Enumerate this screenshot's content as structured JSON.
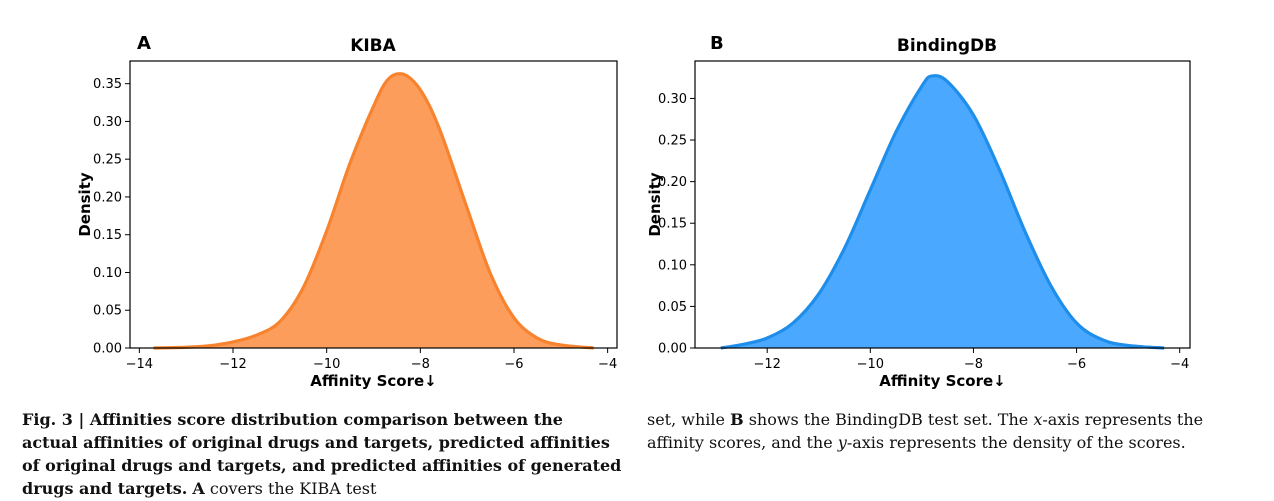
{
  "chart_data": [
    {
      "type": "area",
      "panel_label": "A",
      "title": "KIBA",
      "xlabel": "Affinity Score↓",
      "ylabel": "Density",
      "xlim": [
        -14.2,
        -3.8
      ],
      "ylim": [
        0,
        0.38
      ],
      "xticks": [
        -14,
        -12,
        -10,
        -8,
        -6,
        -4
      ],
      "xtick_labels": [
        "−14",
        "−12",
        "−10",
        "−8",
        "−6",
        "−4"
      ],
      "yticks": [
        0.0,
        0.05,
        0.1,
        0.15,
        0.2,
        0.25,
        0.3,
        0.35
      ],
      "ytick_labels": [
        "0.00",
        "0.05",
        "0.10",
        "0.15",
        "0.20",
        "0.25",
        "0.30",
        "0.35"
      ],
      "fill_color": "#fd9d5b",
      "line_color": "#f7832f",
      "grid": false,
      "series": [
        {
          "x": [
            -13.7,
            -13.0,
            -12.5,
            -12.0,
            -11.5,
            -11.0,
            -10.5,
            -10.0,
            -9.5,
            -9.0,
            -8.7,
            -8.4,
            -8.1,
            -7.8,
            -7.5,
            -7.0,
            -6.5,
            -6.0,
            -5.5,
            -5.0,
            -4.3
          ],
          "y": [
            0.0,
            0.001,
            0.003,
            0.008,
            0.017,
            0.035,
            0.08,
            0.155,
            0.245,
            0.32,
            0.355,
            0.363,
            0.35,
            0.32,
            0.275,
            0.185,
            0.098,
            0.04,
            0.013,
            0.004,
            0.0
          ]
        }
      ]
    },
    {
      "type": "area",
      "panel_label": "B",
      "title": "BindingDB",
      "xlabel": "Affinity Score↓",
      "ylabel": "Density",
      "xlim": [
        -13.4,
        -3.8
      ],
      "ylim": [
        0,
        0.345
      ],
      "xticks": [
        -12,
        -10,
        -8,
        -6,
        -4
      ],
      "xtick_labels": [
        "−12",
        "−10",
        "−8",
        "−6",
        "−4"
      ],
      "yticks": [
        0.0,
        0.05,
        0.1,
        0.15,
        0.2,
        0.25,
        0.3
      ],
      "ytick_labels": [
        "0.00",
        "0.05",
        "0.10",
        "0.15",
        "0.20",
        "0.25",
        "0.30"
      ],
      "fill_color": "#4aa8ff",
      "line_color": "#1f8eea",
      "grid": false,
      "series": [
        {
          "x": [
            -12.9,
            -12.5,
            -12.0,
            -11.5,
            -11.0,
            -10.5,
            -10.0,
            -9.5,
            -9.0,
            -8.8,
            -8.5,
            -8.0,
            -7.5,
            -7.0,
            -6.5,
            -6.0,
            -5.5,
            -5.0,
            -4.3
          ],
          "y": [
            0.0,
            0.004,
            0.012,
            0.03,
            0.065,
            0.12,
            0.19,
            0.26,
            0.315,
            0.327,
            0.32,
            0.28,
            0.215,
            0.14,
            0.075,
            0.03,
            0.01,
            0.003,
            0.0
          ]
        }
      ]
    }
  ],
  "caption": {
    "fig_label": "Fig. 3 | Affinities score distribution comparison between the actual affinities of original drugs and targets, predicted affinities of original drugs and targets, and predicted affinities of generated drugs and targets.",
    "text_1": " covers the KIBA test set, while ",
    "text_2": " shows the BindingDB test set. The ",
    "x_italic": "x",
    "text_3": "-axis represents the affinity scores, and the ",
    "y_italic": "y",
    "text_4": "-axis represents the density of the scores.",
    "ref_a": "A",
    "ref_b": "B",
    "left_col": "Fig. 3 | Affinities score distribution comparison between the actual affinities of original drugs and targets, predicted affinities of original drugs and targets, and predicted affinities of generated drugs and targets.",
    "left_col_a": "A",
    "left_col_tail": " covers the KIBA test",
    "right_col_head": "set, while ",
    "right_col_b": "B",
    "right_col_mid": " shows the BindingDB test set. The ",
    "right_col_x": "x",
    "right_col_mid2": "-axis represents the affinity scores, and the ",
    "right_col_y": "y",
    "right_col_tail": "-axis represents the density of the scores."
  }
}
